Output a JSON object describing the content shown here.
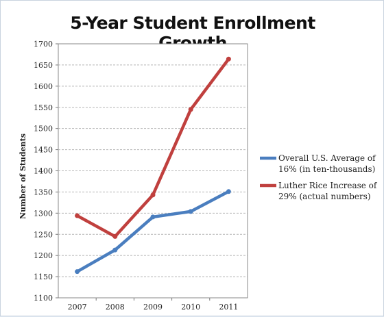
{
  "chart_data": {
    "type": "line",
    "title": "5-Year Student Enrollment Growth",
    "xlabel": "",
    "ylabel": "Number of Students",
    "categories": [
      "2007",
      "2008",
      "2009",
      "2010",
      "2011"
    ],
    "ylim": [
      1100,
      1700
    ],
    "yticks": [
      1100,
      1150,
      1200,
      1250,
      1300,
      1350,
      1400,
      1450,
      1500,
      1550,
      1600,
      1650,
      1700
    ],
    "grid": true,
    "legend_position": "right",
    "series": [
      {
        "name": "Overall U.S. Average of 16% (in ten-thousands)",
        "name_lines": [
          "Overall U.S. Average of",
          "16% (in ten-thousands)"
        ],
        "color": "#4a7ebf",
        "values": [
          1162,
          1213,
          1291,
          1304,
          1351
        ]
      },
      {
        "name": "Luther Rice Increase of 29% (actual numbers)",
        "name_lines": [
          "Luther Rice Increase of",
          "29% (actual numbers)"
        ],
        "color": "#c0403e",
        "values": [
          1294,
          1245,
          1343,
          1545,
          1664
        ]
      }
    ]
  }
}
